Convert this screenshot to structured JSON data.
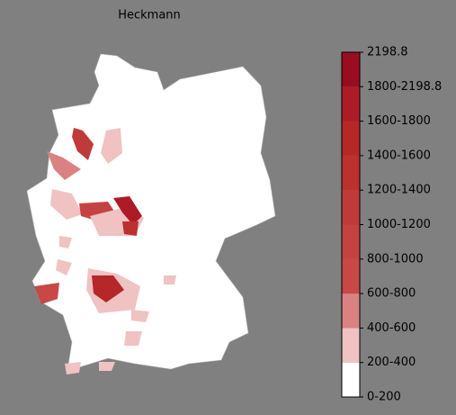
{
  "title": "Heckmann",
  "colorbar": {
    "labels": [
      "0-200",
      "200-400",
      "400-600",
      "600-800",
      "800-1000",
      "1000-1200",
      "1200-1400",
      "1400-1600",
      "1600-1800",
      "1800-2198.8",
      "2198.8"
    ],
    "colors": [
      "#ffffff",
      "#f0c2c2",
      "#da8181",
      "#c84848",
      "#c54242",
      "#c13a3a",
      "#bc3030",
      "#b62727",
      "#ad1c26",
      "#9a0c1f"
    ]
  }
}
